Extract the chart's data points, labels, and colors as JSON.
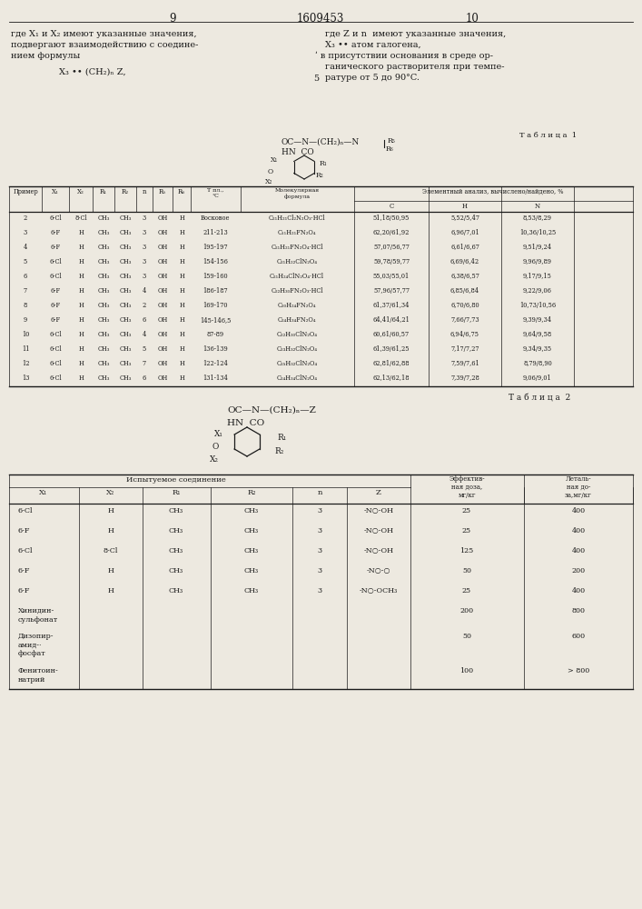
{
  "bg_color": "#ede9e0",
  "page_num_left": "9",
  "page_num_center": "1609453",
  "page_num_right": "10",
  "left_col_text": [
    "где X₁ и X₂ имеют указанные значения,",
    "подвергают взаимодействию с соедине-",
    "нием формулы"
  ],
  "formula_center_left": "X₃ •• (CH₂)ₙ Z,",
  "right_col_text": [
    "где Z и n  имеют указанные значения,",
    "X₃ •• атом галогена,",
    "ʹ в присутствии основания в среде ор-",
    "ганического растворителя при темпе-",
    "ратуре от 5 до 90°C."
  ],
  "line_num_5": "5",
  "table1_title": "Т а б л и ц а  1",
  "table2_title": "Т а б л и ц а  2",
  "table1_rows": [
    [
      "2",
      "6-Cl",
      "8-Cl",
      "CH₃",
      "CH₃",
      "3",
      "OH",
      "H",
      "Восковое",
      "C₂₁H₂₁Cl₂N₂O₃·HCl",
      "51,18/50,95",
      "5,52/5,47",
      "8,53/8,29"
    ],
    [
      "3",
      "6-F",
      "H",
      "CH₃",
      "CH₃",
      "3",
      "OH",
      "H",
      "211-213",
      "C₁₁H₂₁FN₂O₄",
      "62,20/61,92",
      "6,96/7,01",
      "10,36/10,25"
    ],
    [
      "4",
      "6-F",
      "H",
      "CH₃",
      "CH₃",
      "3",
      "OH",
      "H",
      "195-197",
      "C₂₁H₂₁FN₂O₄·HCl",
      "57,07/56,77",
      "6,61/6,67",
      "9,51/9,24"
    ],
    [
      "5",
      "6-Cl",
      "H",
      "CH₃",
      "CH₃",
      "3",
      "OH",
      "H",
      "154-156",
      "C₂₁H₂₂ClN₂O₄",
      "59,78/59,77",
      "6,69/6,42",
      "9,96/9,89"
    ],
    [
      "6",
      "6-Cl",
      "H",
      "CH₃",
      "CH₃",
      "3",
      "OH",
      "H",
      "159-160",
      "C₂₁H₂₄ClN₂O₄·HCl",
      "55,03/55,01",
      "6,38/6,57",
      "9,17/9,15"
    ],
    [
      "7",
      "6-F",
      "H",
      "CH₃",
      "CH₃",
      "4",
      "OH",
      "H",
      "186-187",
      "C₂₂H₃₀FN₂O₃·HCl",
      "57,96/57,77",
      "6,85/6,84",
      "9,22/9,06"
    ],
    [
      "8",
      "6-F",
      "H",
      "CH₃",
      "CH₃",
      "2",
      "OH",
      "H",
      "169-170",
      "C₂₀H₂₄FN₂O₄",
      "61,37/61,34",
      "6,70/6,80",
      "10,73/10,56"
    ],
    [
      "9",
      "6-F",
      "H",
      "CH₃",
      "CH₃",
      "6",
      "OH",
      "H",
      "145-146,5",
      "C₂₄H₃₄FN₂O₄",
      "64,41/64,21",
      "7,66/7,73",
      "9,39/9,34"
    ],
    [
      "10",
      "6-Cl",
      "H",
      "CH₃",
      "CH₃",
      "4",
      "OH",
      "H",
      "87-89",
      "C₂₂H₃₀ClN₂O₄",
      "60,61/60,57",
      "6,94/6,75",
      "9,64/9,58"
    ],
    [
      "11",
      "6-Cl",
      "H",
      "CH₃",
      "CH₃",
      "5",
      "OH",
      "H",
      "136-139",
      "C₂₃H₃₂ClN₂O₄",
      "61,39/61,25",
      "7,17/7,27",
      "9,34/9,35"
    ],
    [
      "12",
      "6-Cl",
      "H",
      "CH₃",
      "CH₃",
      "7",
      "OH",
      "H",
      "122-124",
      "C₂₅H₃₂ClN₂O₄",
      "62,81/62,88",
      "7,59/7,61",
      "8,79/8,90"
    ],
    [
      "13",
      "6-Cl",
      "H",
      "CH₃",
      "CH₃",
      "6",
      "OH",
      "H",
      "131-134",
      "C₂₄H₃₄ClN₂O₄",
      "62,13/62,18",
      "7,39/7,28",
      "9,06/9,01"
    ]
  ],
  "table2_rows": [
    [
      "6-Cl",
      "H",
      "CH₃",
      "CH₃",
      "3",
      "-N○-OH",
      "25",
      "400"
    ],
    [
      "6-F",
      "H",
      "CH₃",
      "CH₃",
      "3",
      "-N○-OH",
      "25",
      "400"
    ],
    [
      "6-Cl",
      "8-Cl",
      "CH₃",
      "CH₃",
      "3",
      "-N○-OH",
      "125",
      "400"
    ],
    [
      "6-F",
      "H",
      "CH₃",
      "CH₃",
      "3",
      "-N○-○",
      "50",
      "200"
    ],
    [
      "6-F",
      "H",
      "CH₃",
      "CH₃",
      "3",
      "-N○-OCH₃",
      "25",
      "400"
    ],
    [
      "Хинидин-\nсульфонат",
      "",
      "",
      "",
      "",
      "",
      "200",
      "800"
    ],
    [
      "Дизопир-\nамид-·\nфосфат",
      "",
      "",
      "",
      "",
      "",
      "50",
      "600"
    ],
    [
      "Фенитоин-\nнатрий",
      "",
      "",
      "",
      "",
      "",
      "100",
      "> 800"
    ]
  ]
}
